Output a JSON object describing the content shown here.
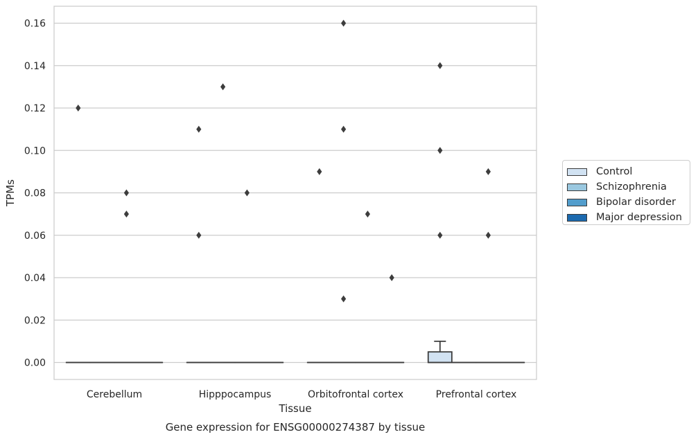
{
  "chart_data": {
    "type": "box",
    "title": "Gene expression for ENSG00000274387 by tissue",
    "xlabel": "Tissue",
    "ylabel": "TPMs",
    "ylim": [
      -0.008,
      0.168
    ],
    "yticks": [
      0.0,
      0.02,
      0.04,
      0.06,
      0.08,
      0.1,
      0.12,
      0.14,
      0.16
    ],
    "ytick_labels": [
      "0.00",
      "0.02",
      "0.04",
      "0.06",
      "0.08",
      "0.10",
      "0.12",
      "0.14",
      "0.16"
    ],
    "categories": [
      "Cerebellum",
      "Hipppocampus",
      "Orbitofrontal cortex",
      "Prefrontal cortex"
    ],
    "grid": "horizontal",
    "legend_position": "right",
    "series": [
      {
        "name": "Control",
        "color": "#d1e2f2",
        "boxes": [
          {
            "q1": 0,
            "median": 0,
            "q3": 0,
            "whisker_low": 0,
            "whisker_high": 0,
            "outliers": [
              0.12
            ]
          },
          {
            "q1": 0,
            "median": 0,
            "q3": 0,
            "whisker_low": 0,
            "whisker_high": 0,
            "outliers": [
              0.11,
              0.06
            ]
          },
          {
            "q1": 0,
            "median": 0,
            "q3": 0,
            "whisker_low": 0,
            "whisker_high": 0,
            "outliers": [
              0.09
            ]
          },
          {
            "q1": 0,
            "median": 0,
            "q3": 0.005,
            "whisker_low": 0,
            "whisker_high": 0.01,
            "outliers": [
              0.14,
              0.1,
              0.06
            ]
          }
        ]
      },
      {
        "name": "Schizophrenia",
        "color": "#9ac8e0",
        "boxes": [
          {
            "q1": 0,
            "median": 0,
            "q3": 0,
            "whisker_low": 0,
            "whisker_high": 0,
            "outliers": []
          },
          {
            "q1": 0,
            "median": 0,
            "q3": 0,
            "whisker_low": 0,
            "whisker_high": 0,
            "outliers": [
              0.13
            ]
          },
          {
            "q1": 0,
            "median": 0,
            "q3": 0,
            "whisker_low": 0,
            "whisker_high": 0,
            "outliers": [
              0.16,
              0.11,
              0.03
            ]
          },
          {
            "q1": 0,
            "median": 0,
            "q3": 0,
            "whisker_low": 0,
            "whisker_high": 0,
            "outliers": []
          }
        ]
      },
      {
        "name": "Bipolar disorder",
        "color": "#529dcc",
        "boxes": [
          {
            "q1": 0,
            "median": 0,
            "q3": 0,
            "whisker_low": 0,
            "whisker_high": 0,
            "outliers": [
              0.08,
              0.07
            ]
          },
          {
            "q1": 0,
            "median": 0,
            "q3": 0,
            "whisker_low": 0,
            "whisker_high": 0,
            "outliers": [
              0.08
            ]
          },
          {
            "q1": 0,
            "median": 0,
            "q3": 0,
            "whisker_low": 0,
            "whisker_high": 0,
            "outliers": [
              0.07
            ]
          },
          {
            "q1": 0,
            "median": 0,
            "q3": 0,
            "whisker_low": 0,
            "whisker_high": 0,
            "outliers": [
              0.09,
              0.06
            ]
          }
        ]
      },
      {
        "name": "Major depression",
        "color": "#1c6aaf",
        "boxes": [
          {
            "q1": 0,
            "median": 0,
            "q3": 0,
            "whisker_low": 0,
            "whisker_high": 0,
            "outliers": []
          },
          {
            "q1": 0,
            "median": 0,
            "q3": 0,
            "whisker_low": 0,
            "whisker_high": 0,
            "outliers": []
          },
          {
            "q1": 0,
            "median": 0,
            "q3": 0,
            "whisker_low": 0,
            "whisker_high": 0,
            "outliers": [
              0.04
            ]
          },
          {
            "q1": 0,
            "median": 0,
            "q3": 0,
            "whisker_low": 0,
            "whisker_high": 0,
            "outliers": []
          }
        ]
      }
    ]
  }
}
